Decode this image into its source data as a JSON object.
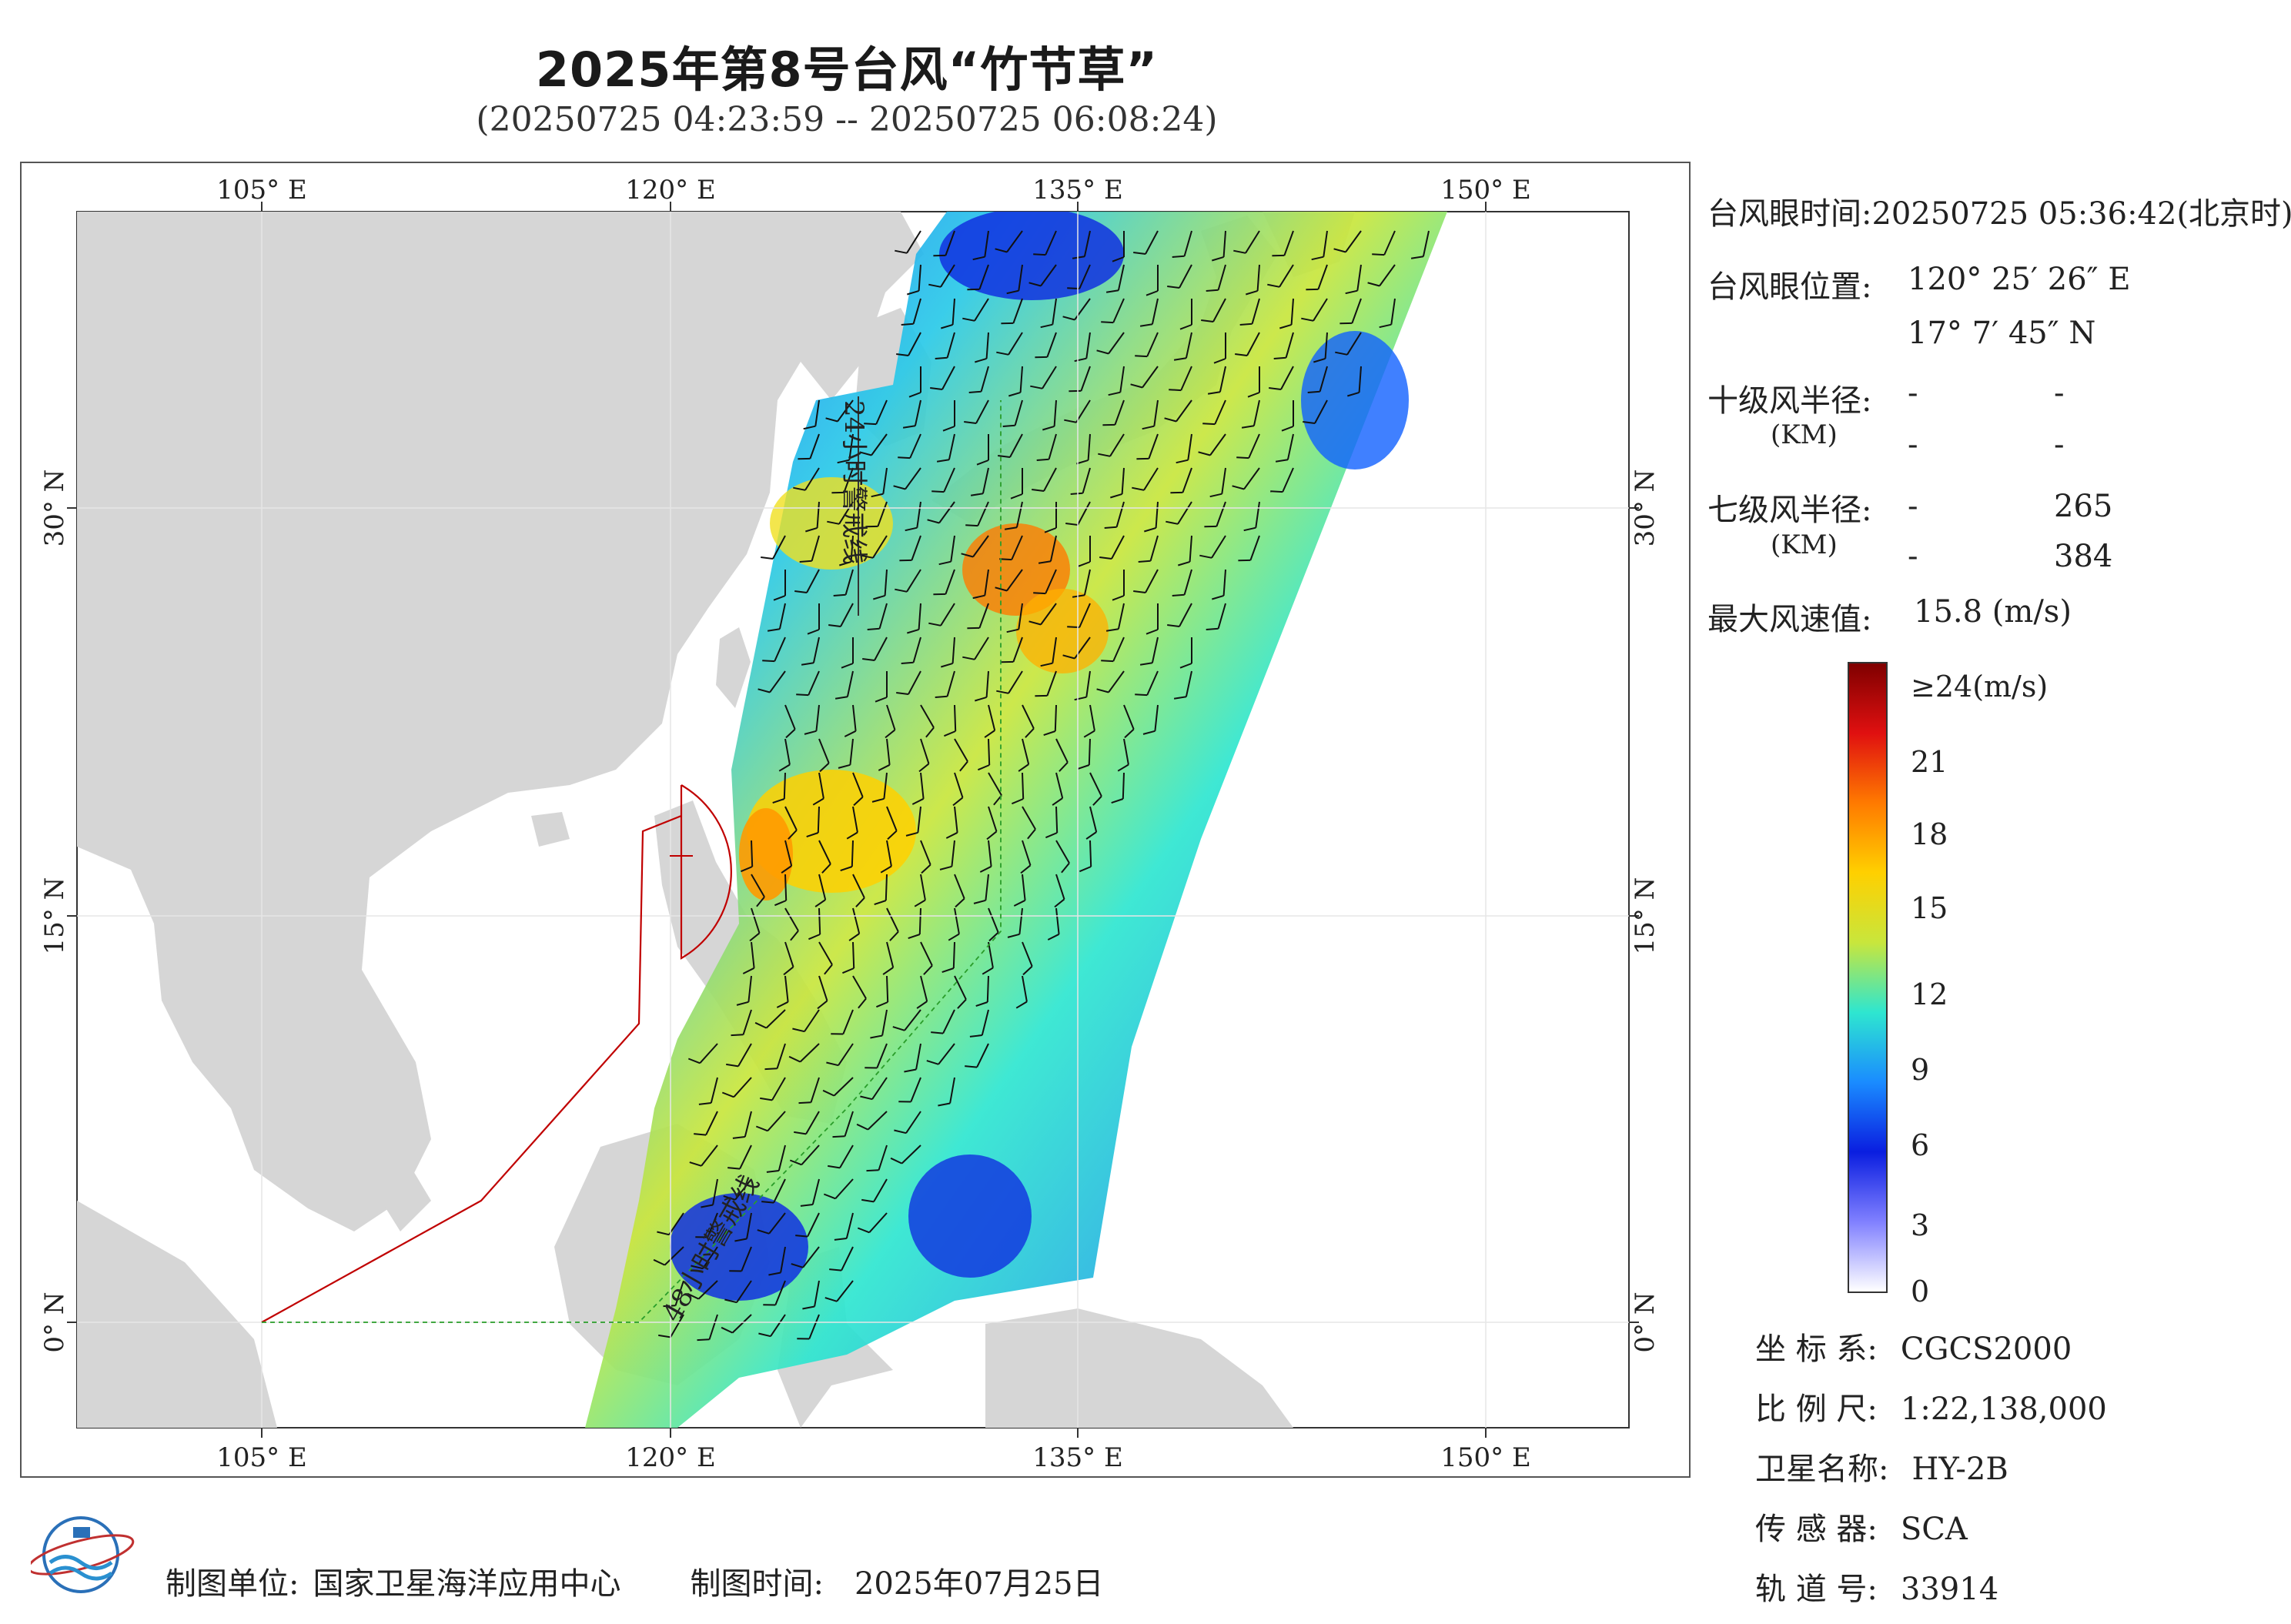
{
  "header": {
    "title": "2025年第8号台风“竹节草”",
    "subtitle": "(20250725 04:23:59 -- 20250725 06:08:24)"
  },
  "map": {
    "lon_ticks": [
      "105° E",
      "120° E",
      "135° E",
      "150° E"
    ],
    "lat_ticks": [
      "30° N",
      "15° N",
      "0° N"
    ],
    "track_labels": [
      "24小时警戒线",
      "48小时警戒线"
    ],
    "colors": {
      "land": "#d6d6d6",
      "sea": "#ffffff",
      "warning_line": "#c00000",
      "track_line": "#2a9d2a",
      "grid": "#e6e6e6"
    }
  },
  "info": {
    "eye_time_label": "台风眼时间:",
    "eye_time_value": "20250725 05:36:42(北京时)",
    "eye_pos_label": "台风眼位置:",
    "eye_lon": "120° 25′ 26″ E",
    "eye_lat": "17° 7′ 45″ N",
    "r10_label": "十级风半径:",
    "r10_unit": "(KM)",
    "r10_values": [
      "-",
      "-",
      "-",
      "-"
    ],
    "r7_label": "七级风半径:",
    "r7_unit": "(KM)",
    "r7_values": [
      "-",
      "265",
      "-",
      "384"
    ],
    "max_wind_label": "最大风速值:",
    "max_wind_value": "15.8  (m/s)"
  },
  "colorbar": {
    "ticks": [
      "≥24(m/s)",
      "21",
      "18",
      "15",
      "12",
      "9",
      "6",
      "3",
      "0"
    ],
    "stops": [
      "#7f0000",
      "#e01010",
      "#ff7a00",
      "#ffd000",
      "#c8e63c",
      "#2ee6d0",
      "#1a8cff",
      "#0a1ee0",
      "#8080ff",
      "#ffffff"
    ]
  },
  "meta": {
    "crs_label": "坐 标 系:",
    "crs_value": "CGCS2000",
    "scale_label": "比 例 尺:",
    "scale_value": "1:22,138,000",
    "sat_label": "卫星名称:",
    "sat_value": "HY-2B",
    "sensor_label": "传 感 器:",
    "sensor_value": "SCA",
    "orbit_label": "轨 道 号:",
    "orbit_value": "33914"
  },
  "footer": {
    "maker_label": "制图单位:",
    "maker_value": "国家卫星海洋应用中心",
    "time_label": "制图时间:",
    "time_value": "2025年07月25日"
  }
}
